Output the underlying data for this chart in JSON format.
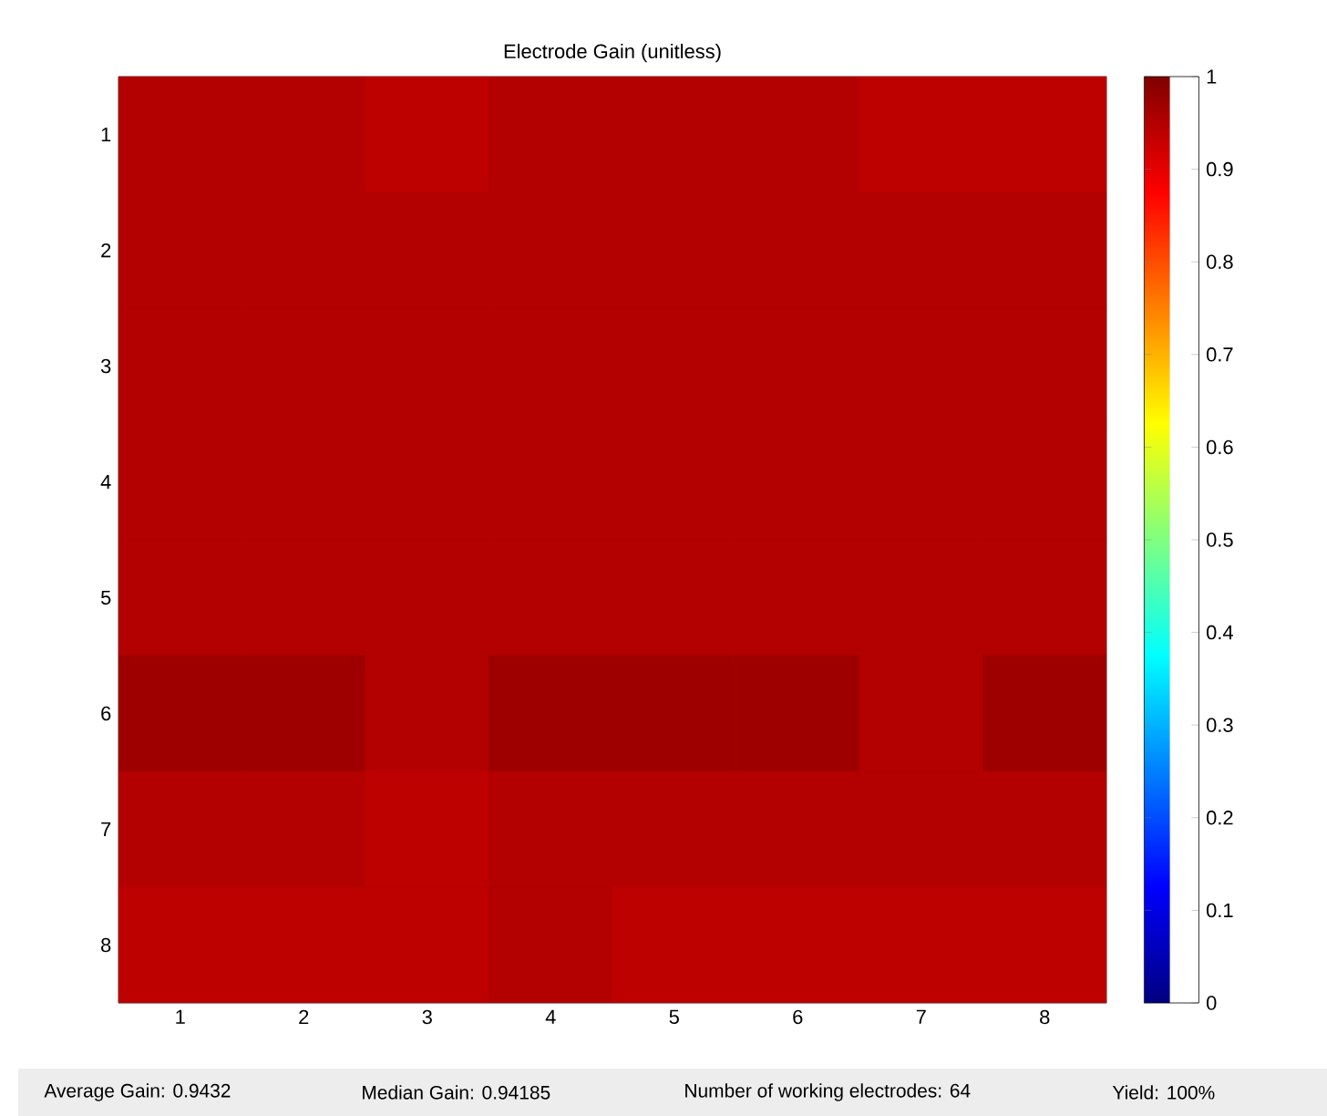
{
  "chart_data": {
    "type": "heatmap",
    "title": "Electrode Gain (unitless)",
    "categories": [
      "1",
      "2",
      "3",
      "4",
      "5",
      "6",
      "7",
      "8"
    ],
    "y_categories": [
      "1",
      "2",
      "3",
      "4",
      "5",
      "6",
      "7",
      "8"
    ],
    "cells": [
      [
        0.95,
        0.95,
        0.94,
        0.95,
        0.95,
        0.95,
        0.94,
        0.94
      ],
      [
        0.95,
        0.95,
        0.95,
        0.95,
        0.95,
        0.95,
        0.95,
        0.95
      ],
      [
        0.95,
        0.95,
        0.95,
        0.95,
        0.95,
        0.95,
        0.95,
        0.95
      ],
      [
        0.95,
        0.95,
        0.95,
        0.95,
        0.95,
        0.95,
        0.95,
        0.95
      ],
      [
        0.95,
        0.95,
        0.95,
        0.95,
        0.95,
        0.95,
        0.95,
        0.95
      ],
      [
        0.97,
        0.97,
        0.95,
        0.97,
        0.97,
        0.97,
        0.95,
        0.97
      ],
      [
        0.95,
        0.95,
        0.94,
        0.95,
        0.95,
        0.95,
        0.95,
        0.95
      ],
      [
        0.94,
        0.94,
        0.94,
        0.95,
        0.94,
        0.94,
        0.94,
        0.94
      ]
    ],
    "clim": [
      0,
      1
    ],
    "cticks": [
      0,
      0.1,
      0.2,
      0.3,
      0.4,
      0.5,
      0.6,
      0.7,
      0.8,
      0.9,
      1
    ],
    "annotations": [
      "Average Gain: 0.9432",
      "Median Gain: 0.94185",
      "Number of working electrodes: 64",
      "Yield: 100%"
    ]
  }
}
